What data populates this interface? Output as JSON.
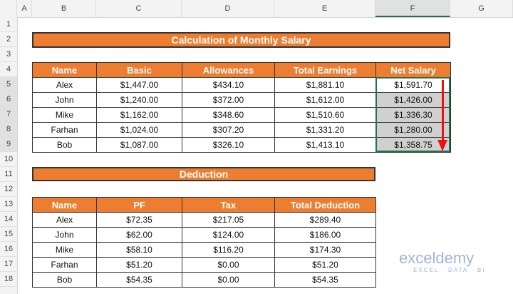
{
  "columns": [
    "A",
    "B",
    "C",
    "D",
    "E",
    "F",
    "G"
  ],
  "rows": [
    "1",
    "2",
    "3",
    "4",
    "5",
    "6",
    "7",
    "8",
    "9",
    "10",
    "11",
    "12",
    "13",
    "14",
    "15",
    "16",
    "17",
    "18"
  ],
  "salary": {
    "title": "Calculation  of Monthly Salary",
    "headers": [
      "Name",
      "Basic",
      "Allowances",
      "Total Earnings",
      "Net Salary"
    ],
    "data": [
      [
        "Alex",
        "$1,447.00",
        "$434.10",
        "$1,881.10",
        "$1,591.70"
      ],
      [
        "John",
        "$1,240.00",
        "$372.00",
        "$1,612.00",
        "$1,426.00"
      ],
      [
        "Mike",
        "$1,162.00",
        "$348.60",
        "$1,510.60",
        "$1,336.30"
      ],
      [
        "Farhan",
        "$1,024.00",
        "$307.20",
        "$1,331.20",
        "$1,280.00"
      ],
      [
        "Bob",
        "$1,087.00",
        "$326.10",
        "$1,413.10",
        "$1,358.75"
      ]
    ]
  },
  "deduction": {
    "title": "Deduction",
    "headers": [
      "Name",
      "PF",
      "Tax",
      "Total Deduction"
    ],
    "data": [
      [
        "Alex",
        "$72.35",
        "$217.05",
        "$289.40"
      ],
      [
        "John",
        "$62.00",
        "$124.00",
        "$186.00"
      ],
      [
        "Mike",
        "$58.10",
        "$116.20",
        "$174.30"
      ],
      [
        "Farhan",
        "$51.20",
        "$0.00",
        "$51.20"
      ],
      [
        "Bob",
        "$54.35",
        "$0.00",
        "$54.35"
      ]
    ]
  },
  "watermark": {
    "brand": "exceldemy",
    "tagline": "EXCEL · DATA · BI"
  },
  "colors": {
    "header_fill": "#ed7d31",
    "selection": "#217346",
    "arrow": "#e11111"
  }
}
